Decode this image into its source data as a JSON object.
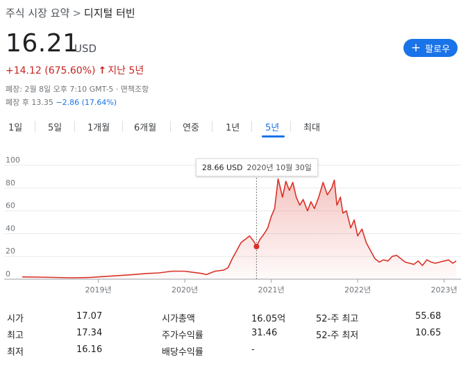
{
  "breadcrumb": {
    "parent": "주식 시장 요약",
    "separator": ">",
    "current": "디지털 터빈"
  },
  "quote": {
    "price": "16.21",
    "currency": "USD",
    "change": "+14.12 (675.60%)",
    "change_arrow": "↑",
    "change_period": "지난 5년",
    "close_info": "폐장: 2월 8일 오후 7:10 GMT-5 · 면책조항",
    "after_hours_label": "폐장 후",
    "after_hours_price": "13.35",
    "after_hours_change": "−2.86 (17.64%)"
  },
  "follow_button": {
    "icon": "plus-icon",
    "label": "팔로우",
    "color": "#1a73e8"
  },
  "tabs": [
    {
      "label": "1일"
    },
    {
      "label": "5일"
    },
    {
      "label": "1개월"
    },
    {
      "label": "6개월"
    },
    {
      "label": "연중"
    },
    {
      "label": "1년"
    },
    {
      "label": "5년",
      "active": true
    },
    {
      "label": "최대"
    }
  ],
  "tooltip": {
    "value": "28.66 USD",
    "date": "2020년 10월 30일"
  },
  "chart_data": {
    "type": "area",
    "line_color": "#d93025",
    "ylim": [
      0,
      100
    ],
    "y_ticks": [
      "100",
      "80",
      "60",
      "40",
      "20",
      "0"
    ],
    "x_ticks": [
      "2019년",
      "2020년",
      "2021년",
      "2022년",
      "2023년"
    ],
    "x_tick_years": [
      2019,
      2020,
      2021,
      2022,
      2023
    ],
    "xlim": [
      2018.12,
      2023.14
    ],
    "highlight": {
      "x": 2020.83,
      "y": 28.66
    },
    "x": [
      2018.12,
      2018.3,
      2018.5,
      2018.7,
      2018.9,
      2019.0,
      2019.2,
      2019.4,
      2019.55,
      2019.7,
      2019.85,
      2020.0,
      2020.1,
      2020.2,
      2020.25,
      2020.35,
      2020.45,
      2020.5,
      2020.55,
      2020.6,
      2020.65,
      2020.7,
      2020.75,
      2020.8,
      2020.83,
      2020.87,
      2020.92,
      2020.96,
      2021.0,
      2021.04,
      2021.08,
      2021.1,
      2021.13,
      2021.17,
      2021.21,
      2021.25,
      2021.29,
      2021.33,
      2021.37,
      2021.42,
      2021.46,
      2021.5,
      2021.55,
      2021.6,
      2021.65,
      2021.7,
      2021.73,
      2021.76,
      2021.8,
      2021.83,
      2021.87,
      2021.92,
      2021.96,
      2022.0,
      2022.05,
      2022.1,
      2022.15,
      2022.2,
      2022.25,
      2022.3,
      2022.35,
      2022.4,
      2022.45,
      2022.5,
      2022.55,
      2022.6,
      2022.65,
      2022.7,
      2022.75,
      2022.8,
      2022.85,
      2022.9,
      2022.95,
      2023.0,
      2023.05,
      2023.1,
      2023.14
    ],
    "y": [
      2,
      1.8,
      1.5,
      1.2,
      1.5,
      2,
      3,
      4,
      5,
      5.5,
      7,
      7,
      6,
      5,
      4,
      7,
      8,
      10,
      18,
      25,
      32,
      35,
      38,
      33,
      28.66,
      35,
      40,
      45,
      55,
      62,
      88,
      82,
      72,
      86,
      78,
      85,
      72,
      65,
      70,
      60,
      68,
      62,
      72,
      85,
      74,
      80,
      87,
      65,
      72,
      58,
      60,
      45,
      52,
      38,
      44,
      32,
      25,
      18,
      15,
      17,
      16,
      20,
      21,
      18,
      15,
      14,
      13,
      16,
      12,
      17,
      15,
      14,
      15,
      16,
      17,
      14,
      16
    ]
  },
  "stats": [
    [
      {
        "label": "시가",
        "value": "17.07"
      },
      {
        "label": "시가총액",
        "value": "16.05억"
      },
      {
        "label": "52-주 최고",
        "value": "55.68"
      }
    ],
    [
      {
        "label": "최고",
        "value": "17.34"
      },
      {
        "label": "주가수익률",
        "value": "31.46"
      },
      {
        "label": "52-주 최저",
        "value": "10.65"
      }
    ],
    [
      {
        "label": "최저",
        "value": "16.16"
      },
      {
        "label": "배당수익률",
        "value": "-"
      }
    ]
  ]
}
